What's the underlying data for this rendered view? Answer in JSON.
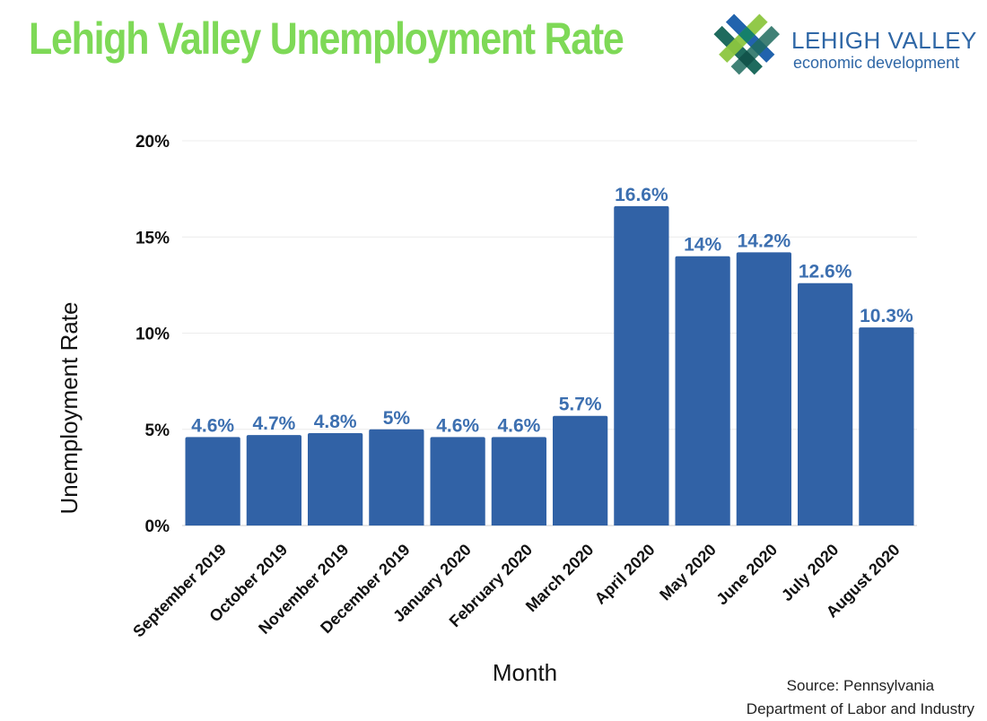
{
  "header": {
    "title": "Lehigh Valley Unemployment Rate",
    "logo_line1": "LEHIGH VALLEY",
    "logo_line2": "economic development",
    "title_color": "#7ed957",
    "brand_color": "#2f67a6"
  },
  "footer": {
    "source_line1": "Source: Pennsylvania",
    "source_line2": "Department of Labor and Industry"
  },
  "chart_data": {
    "type": "bar",
    "title": "",
    "xlabel": "Month",
    "ylabel": "Unemployment Rate",
    "categories": [
      "September 2019",
      "October 2019",
      "November 2019",
      "December 2019",
      "January 2020",
      "February 2020",
      "March 2020",
      "April 2020",
      "May 2020",
      "June 2020",
      "July 2020",
      "August 2020"
    ],
    "values": [
      4.6,
      4.7,
      4.8,
      5,
      4.6,
      4.6,
      5.7,
      16.6,
      14,
      14.2,
      12.6,
      10.3
    ],
    "value_labels": [
      "4.6%",
      "4.7%",
      "4.8%",
      "5%",
      "4.6%",
      "4.6%",
      "5.7%",
      "16.6%",
      "14%",
      "14.2%",
      "12.6%",
      "10.3%"
    ],
    "ylim": [
      0,
      20
    ],
    "yticks": [
      0,
      5,
      10,
      15,
      20
    ],
    "ytick_labels": [
      "0%",
      "5%",
      "10%",
      "15%",
      "20%"
    ],
    "grid": true,
    "bar_color": "#3162a6",
    "label_color": "#3c6fb0"
  }
}
